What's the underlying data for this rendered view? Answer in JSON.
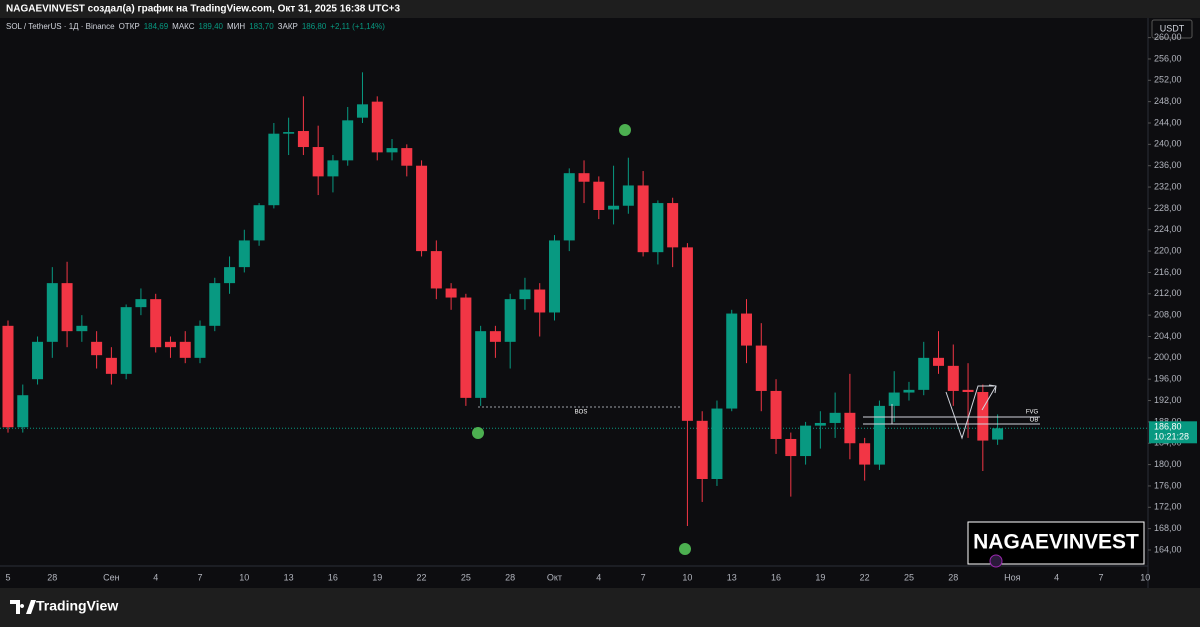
{
  "chart_data": {
    "type": "candlestick",
    "attribution": "NAGAEVINVEST создал(а) график на TradingView.com, Окт 31, 2025 16:38 UTC+3",
    "title": "SOL / TetherUS · 1Д · Binance",
    "ohlc_legend": [
      {
        "label": "ОТКР",
        "value": "184,69"
      },
      {
        "label": "МАКС",
        "value": "189,40"
      },
      {
        "label": "МИН",
        "value": "183,70"
      },
      {
        "label": "ЗАКР",
        "value": "186,80"
      }
    ],
    "change": "+2,11 (+1,14%)",
    "currency": "USDT",
    "last_price": {
      "value": 186.8,
      "label": "186,80"
    },
    "countdown": "10:21:28",
    "annotations": [
      "BOS",
      "FVG",
      "OB"
    ],
    "watermark": "NAGAEVINVEST",
    "brand": "TradingView",
    "up_color": "#089981",
    "down_color": "#f23645",
    "categories": [
      "5",
      null,
      null,
      "28",
      null,
      null,
      null,
      "Сен",
      null,
      null,
      "4",
      null,
      null,
      "7",
      null,
      null,
      "10",
      null,
      null,
      "13",
      null,
      null,
      "16",
      null,
      null,
      "19",
      null,
      null,
      "22",
      null,
      null,
      "25",
      null,
      null,
      "28",
      null,
      null,
      "Окт",
      null,
      null,
      "4",
      null,
      null,
      "7",
      null,
      null,
      "10",
      null,
      null,
      "13",
      null,
      null,
      "16",
      null,
      null,
      "19",
      null,
      null,
      "22",
      null,
      null,
      "25",
      null,
      null,
      "28",
      null,
      null,
      null
    ],
    "future_categories": [
      "Ноя",
      null,
      null,
      "4",
      null,
      null,
      "7",
      null,
      null,
      "10"
    ],
    "open": [
      206,
      187,
      196,
      203,
      214,
      205,
      203,
      200,
      197,
      209.5,
      211,
      203,
      203,
      200,
      206,
      214,
      217,
      222,
      228.6,
      242,
      242.5,
      239.5,
      234,
      237,
      245,
      248,
      238.5,
      239.3,
      236,
      220,
      213,
      211.3,
      192.5,
      205,
      203,
      211,
      212.8,
      208.5,
      222,
      234.6,
      233,
      227.8,
      228.5,
      232.3,
      219.8,
      229,
      220.7,
      188.2,
      177.3,
      190.5,
      208.3,
      202.3,
      193.8,
      184.8,
      181.6,
      187.3,
      187.8,
      189.7,
      184,
      180,
      191,
      193.5,
      194,
      200,
      198.5,
      194,
      193.6,
      184.69
    ],
    "high": [
      207,
      195,
      204,
      217,
      218,
      208,
      205,
      202,
      210,
      213,
      212,
      204,
      205,
      207,
      215,
      219,
      224,
      229,
      244,
      245,
      249,
      243.5,
      238,
      247,
      253.5,
      249,
      241,
      240,
      237,
      222,
      214,
      212,
      206,
      206,
      212,
      215,
      214,
      223,
      235.5,
      237,
      234,
      236,
      237.5,
      235,
      229.5,
      230,
      221.5,
      190,
      192,
      209,
      211,
      206.5,
      196,
      186,
      188,
      190,
      193.5,
      197,
      185,
      192,
      197.5,
      195.5,
      203,
      205,
      202.5,
      199,
      195,
      189.4
    ],
    "low": [
      186,
      186,
      195,
      200,
      202,
      203,
      198,
      195,
      196,
      208,
      201,
      200,
      199,
      199,
      205,
      212,
      216,
      221,
      228,
      238,
      238,
      230.5,
      231,
      236,
      244,
      237,
      237,
      234,
      219,
      211,
      209,
      191,
      191,
      200,
      198,
      209,
      204,
      207,
      220,
      229,
      226,
      225,
      227,
      219,
      217.5,
      217,
      168.5,
      173,
      176,
      190,
      199,
      190,
      182,
      174,
      180,
      183,
      185,
      181,
      177,
      179,
      188,
      192,
      193,
      197,
      191,
      185,
      178.8,
      183.7
    ],
    "close": [
      187,
      193,
      203,
      214,
      205,
      206,
      200.5,
      197,
      209.5,
      211,
      202,
      202,
      200,
      206,
      214,
      217,
      222,
      228.6,
      242,
      242.3,
      239.5,
      234,
      237,
      244.5,
      247.5,
      238.5,
      239.3,
      236,
      220,
      213,
      211.3,
      192.5,
      205,
      203,
      211,
      212.8,
      208.5,
      222,
      234.6,
      233,
      227.7,
      228.5,
      232.3,
      219.8,
      229,
      220.7,
      188.2,
      177.3,
      190.5,
      208.3,
      202.3,
      193.8,
      184.8,
      181.6,
      187.3,
      187.8,
      189.7,
      184,
      180,
      191,
      193.5,
      194,
      200,
      198.5,
      193.8,
      193.6,
      184.5,
      186.8
    ],
    "ylim": [
      161,
      263.3
    ],
    "yticks": [
      {
        "value": 164,
        "label": "164,00"
      },
      {
        "value": 168,
        "label": "168,00"
      },
      {
        "value": 172,
        "label": "172,00"
      },
      {
        "value": 176,
        "label": "176,00"
      },
      {
        "value": 180,
        "label": "180,00"
      },
      {
        "value": 184,
        "label": "184,00"
      },
      {
        "value": 188,
        "label": "188,00"
      },
      {
        "value": 192,
        "label": "192,00"
      },
      {
        "value": 196,
        "label": "196,00"
      },
      {
        "value": 200,
        "label": "200,00"
      },
      {
        "value": 204,
        "label": "204,00"
      },
      {
        "value": 208,
        "label": "208,00"
      },
      {
        "value": 212,
        "label": "212,00"
      },
      {
        "value": 216,
        "label": "216,00"
      },
      {
        "value": 220,
        "label": "220,00"
      },
      {
        "value": 224,
        "label": "224,00"
      },
      {
        "value": 228,
        "label": "228,00"
      },
      {
        "value": 232,
        "label": "232,00"
      },
      {
        "value": 236,
        "label": "236,00"
      },
      {
        "value": 240,
        "label": "240,00"
      },
      {
        "value": 244,
        "label": "244,00"
      },
      {
        "value": 248,
        "label": "248,00"
      },
      {
        "value": 252,
        "label": "252,00"
      },
      {
        "value": 256,
        "label": "256,00"
      },
      {
        "value": 260,
        "label": "260,00"
      }
    ]
  }
}
